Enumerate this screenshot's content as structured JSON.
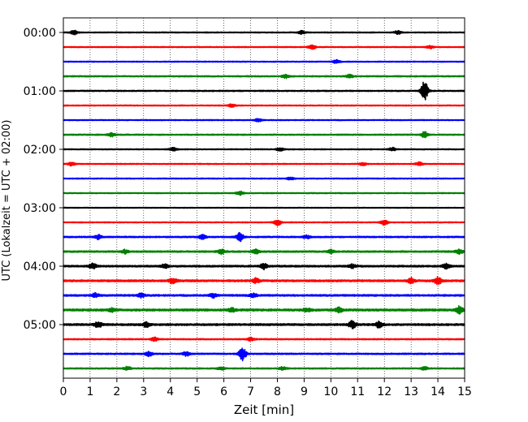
{
  "chart_data": {
    "type": "line",
    "xlabel": "Zeit  [min]",
    "ylabel": "UTC (Lokalzeit = UTC + 02:00)",
    "xlim": [
      0,
      15
    ],
    "x_ticks": [
      "0",
      "1",
      "2",
      "3",
      "4",
      "5",
      "6",
      "7",
      "8",
      "9",
      "10",
      "11",
      "12",
      "13",
      "14",
      "15"
    ],
    "y_tick_labels": [
      "00:00",
      "01:00",
      "02:00",
      "03:00",
      "04:00",
      "05:00"
    ],
    "grid": "vertical dotted",
    "trace_interval_min": 15,
    "trace_colors": [
      "#000000",
      "#ff0000",
      "#0000ff",
      "#008000"
    ],
    "traces": [
      {
        "start": "00:00",
        "color": "#000000",
        "noise": 0.25,
        "events": [
          [
            0.4,
            1.2
          ],
          [
            8.9,
            0.9
          ],
          [
            12.5,
            1.0
          ]
        ]
      },
      {
        "start": "00:15",
        "color": "#ff0000",
        "noise": 0.25,
        "events": [
          [
            9.3,
            1.2
          ],
          [
            13.7,
            0.8
          ]
        ]
      },
      {
        "start": "00:30",
        "color": "#0000ff",
        "noise": 0.25,
        "events": [
          [
            10.2,
            0.9
          ]
        ]
      },
      {
        "start": "00:45",
        "color": "#008000",
        "noise": 0.3,
        "events": [
          [
            8.3,
            1.0
          ],
          [
            10.7,
            1.0
          ]
        ]
      },
      {
        "start": "01:00",
        "color": "#000000",
        "noise": 0.3,
        "events": [
          [
            13.5,
            5.5
          ]
        ]
      },
      {
        "start": "01:15",
        "color": "#ff0000",
        "noise": 0.25,
        "events": [
          [
            6.3,
            0.8
          ]
        ]
      },
      {
        "start": "01:30",
        "color": "#0000ff",
        "noise": 0.25,
        "events": [
          [
            7.3,
            0.8
          ]
        ]
      },
      {
        "start": "01:45",
        "color": "#008000",
        "noise": 0.3,
        "events": [
          [
            1.8,
            1.0
          ],
          [
            13.5,
            1.6
          ]
        ]
      },
      {
        "start": "02:00",
        "color": "#000000",
        "noise": 0.25,
        "events": [
          [
            4.1,
            0.9
          ],
          [
            8.1,
            0.9
          ],
          [
            12.3,
            0.9
          ]
        ]
      },
      {
        "start": "02:15",
        "color": "#ff0000",
        "noise": 0.25,
        "events": [
          [
            0.3,
            1.0
          ],
          [
            11.2,
            0.8
          ],
          [
            13.3,
            0.9
          ]
        ]
      },
      {
        "start": "02:30",
        "color": "#0000ff",
        "noise": 0.25,
        "events": [
          [
            8.5,
            0.7
          ]
        ]
      },
      {
        "start": "02:45",
        "color": "#008000",
        "noise": 0.25,
        "events": [
          [
            6.6,
            1.0
          ]
        ]
      },
      {
        "start": "03:00",
        "color": "#000000",
        "noise": 0.22,
        "events": []
      },
      {
        "start": "03:15",
        "color": "#ff0000",
        "noise": 0.25,
        "events": [
          [
            8.0,
            1.8
          ],
          [
            12.0,
            1.5
          ]
        ]
      },
      {
        "start": "03:30",
        "color": "#0000ff",
        "noise": 0.35,
        "events": [
          [
            1.3,
            1.2
          ],
          [
            5.2,
            1.3
          ],
          [
            6.6,
            2.3
          ],
          [
            9.1,
            0.9
          ]
        ]
      },
      {
        "start": "03:45",
        "color": "#008000",
        "noise": 0.4,
        "events": [
          [
            2.3,
            1.0
          ],
          [
            5.9,
            1.3
          ],
          [
            7.2,
            1.0
          ],
          [
            10.0,
            1.0
          ],
          [
            14.8,
            1.2
          ]
        ]
      },
      {
        "start": "04:00",
        "color": "#000000",
        "noise": 0.45,
        "events": [
          [
            1.1,
            1.5
          ],
          [
            3.8,
            1.1
          ],
          [
            7.5,
            1.6
          ],
          [
            10.8,
            1.0
          ],
          [
            14.3,
            1.5
          ]
        ]
      },
      {
        "start": "04:15",
        "color": "#ff0000",
        "noise": 0.5,
        "events": [
          [
            4.1,
            1.6
          ],
          [
            7.2,
            1.3
          ],
          [
            13.0,
            1.5
          ],
          [
            14.0,
            2.0
          ]
        ]
      },
      {
        "start": "04:30",
        "color": "#0000ff",
        "noise": 0.45,
        "events": [
          [
            1.2,
            1.2
          ],
          [
            2.9,
            1.1
          ],
          [
            5.6,
            1.2
          ],
          [
            7.1,
            1.0
          ]
        ]
      },
      {
        "start": "04:45",
        "color": "#008000",
        "noise": 0.55,
        "events": [
          [
            1.8,
            1.1
          ],
          [
            6.3,
            1.0
          ],
          [
            9.1,
            1.0
          ],
          [
            10.3,
            1.2
          ],
          [
            14.8,
            2.0
          ]
        ]
      },
      {
        "start": "05:00",
        "color": "#000000",
        "noise": 0.5,
        "events": [
          [
            1.3,
            1.6
          ],
          [
            3.1,
            1.2
          ],
          [
            10.8,
            2.2
          ],
          [
            11.8,
            1.5
          ]
        ]
      },
      {
        "start": "05:15",
        "color": "#ff0000",
        "noise": 0.3,
        "events": [
          [
            3.4,
            1.0
          ],
          [
            7.0,
            1.0
          ]
        ]
      },
      {
        "start": "05:30",
        "color": "#0000ff",
        "noise": 0.35,
        "events": [
          [
            3.2,
            1.2
          ],
          [
            4.6,
            1.2
          ],
          [
            6.7,
            3.5
          ]
        ]
      },
      {
        "start": "05:45",
        "color": "#008000",
        "noise": 0.3,
        "events": [
          [
            2.4,
            1.0
          ],
          [
            5.9,
            0.9
          ],
          [
            8.2,
            0.9
          ],
          [
            13.5,
            0.9
          ]
        ]
      }
    ]
  }
}
